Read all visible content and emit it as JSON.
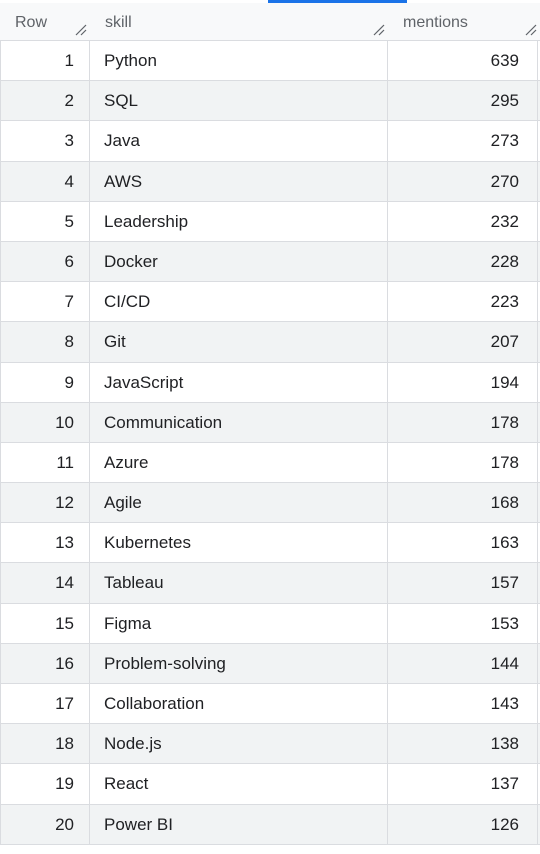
{
  "columns": {
    "row": "Row",
    "skill": "skill",
    "mentions": "mentions"
  },
  "rows": [
    {
      "row": "1",
      "skill": "Python",
      "mentions": "639"
    },
    {
      "row": "2",
      "skill": "SQL",
      "mentions": "295"
    },
    {
      "row": "3",
      "skill": "Java",
      "mentions": "273"
    },
    {
      "row": "4",
      "skill": "AWS",
      "mentions": "270"
    },
    {
      "row": "5",
      "skill": "Leadership",
      "mentions": "232"
    },
    {
      "row": "6",
      "skill": "Docker",
      "mentions": "228"
    },
    {
      "row": "7",
      "skill": "CI/CD",
      "mentions": "223"
    },
    {
      "row": "8",
      "skill": "Git",
      "mentions": "207"
    },
    {
      "row": "9",
      "skill": "JavaScript",
      "mentions": "194"
    },
    {
      "row": "10",
      "skill": "Communication",
      "mentions": "178"
    },
    {
      "row": "11",
      "skill": "Azure",
      "mentions": "178"
    },
    {
      "row": "12",
      "skill": "Agile",
      "mentions": "168"
    },
    {
      "row": "13",
      "skill": "Kubernetes",
      "mentions": "163"
    },
    {
      "row": "14",
      "skill": "Tableau",
      "mentions": "157"
    },
    {
      "row": "15",
      "skill": "Figma",
      "mentions": "153"
    },
    {
      "row": "16",
      "skill": "Problem-solving",
      "mentions": "144"
    },
    {
      "row": "17",
      "skill": "Collaboration",
      "mentions": "143"
    },
    {
      "row": "18",
      "skill": "Node.js",
      "mentions": "138"
    },
    {
      "row": "19",
      "skill": "React",
      "mentions": "137"
    },
    {
      "row": "20",
      "skill": "Power BI",
      "mentions": "126"
    }
  ],
  "icons": {
    "resize": "column-resize-icon"
  },
  "colors": {
    "accent": "#1a73e8",
    "alt_row": "#f1f3f4",
    "border": "#dadce0"
  }
}
